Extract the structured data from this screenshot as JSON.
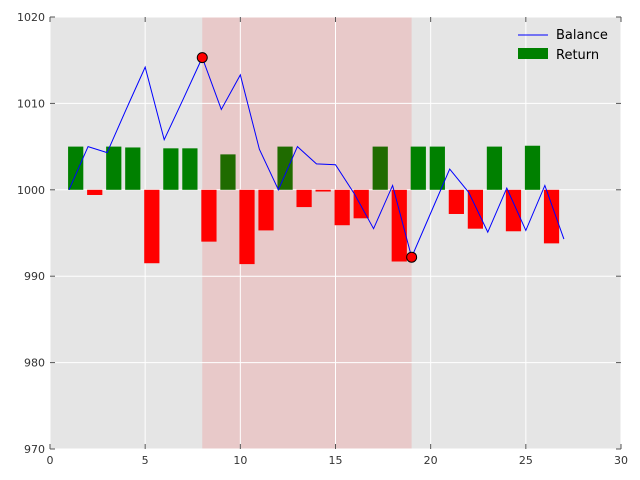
{
  "chart_data": {
    "type": "bar+line",
    "title": "",
    "xlabel": "",
    "ylabel": "",
    "xlim": [
      0,
      30
    ],
    "ylim": [
      970,
      1020
    ],
    "xticks": [
      0,
      5,
      10,
      15,
      20,
      25,
      30
    ],
    "yticks": [
      970,
      980,
      990,
      1000,
      1010,
      1020
    ],
    "grid": true,
    "legend_placement": "top-right",
    "shaded_region": {
      "x_start": 8,
      "x_end": 19,
      "color": "#e8c9c9"
    },
    "series": [
      {
        "name": "Balance",
        "type": "line",
        "color": "#0000ff",
        "x": [
          1,
          2,
          3,
          4,
          5,
          6,
          7,
          8,
          9,
          10,
          11,
          12,
          13,
          14,
          15,
          16,
          17,
          18,
          19,
          20,
          21,
          22,
          23,
          24,
          25,
          26,
          27
        ],
        "values": [
          1000.0,
          1005.0,
          1004.3,
          1009.3,
          1014.2,
          1005.8,
          1010.5,
          1015.3,
          1009.3,
          1013.3,
          1004.7,
          1000.0,
          1005.0,
          1003.0,
          1002.9,
          999.5,
          995.5,
          1000.5,
          992.2,
          997.3,
          1002.4,
          999.7,
          995.1,
          1000.2,
          995.3,
          1000.5,
          994.3
        ]
      },
      {
        "name": "Return",
        "type": "bar",
        "color": "#008000",
        "negative_color": "#ff0000",
        "x": [
          1.35,
          2.35,
          3.35,
          4.35,
          5.35,
          6.35,
          7.35,
          8.35,
          9.35,
          10.35,
          11.35,
          12.35,
          13.35,
          14.35,
          15.35,
          16.35,
          17.35,
          18.35,
          19.35,
          20.35,
          21.35,
          22.35,
          23.35,
          24.35,
          25.35,
          26.35
        ],
        "values": [
          5.0,
          -0.6,
          5.0,
          4.9,
          -8.5,
          4.8,
          4.8,
          -6.0,
          4.1,
          -8.6,
          -4.7,
          5.0,
          -2.0,
          -0.2,
          -4.1,
          -3.3,
          5.0,
          -8.3,
          5.0,
          5.0,
          -2.8,
          -4.5,
          5.0,
          -4.8,
          5.1,
          -6.2
        ]
      }
    ],
    "markers": [
      {
        "x": 8,
        "y": 1015.3,
        "color": "#ff0000"
      },
      {
        "x": 19,
        "y": 992.2,
        "color": "#ff0000"
      }
    ]
  }
}
